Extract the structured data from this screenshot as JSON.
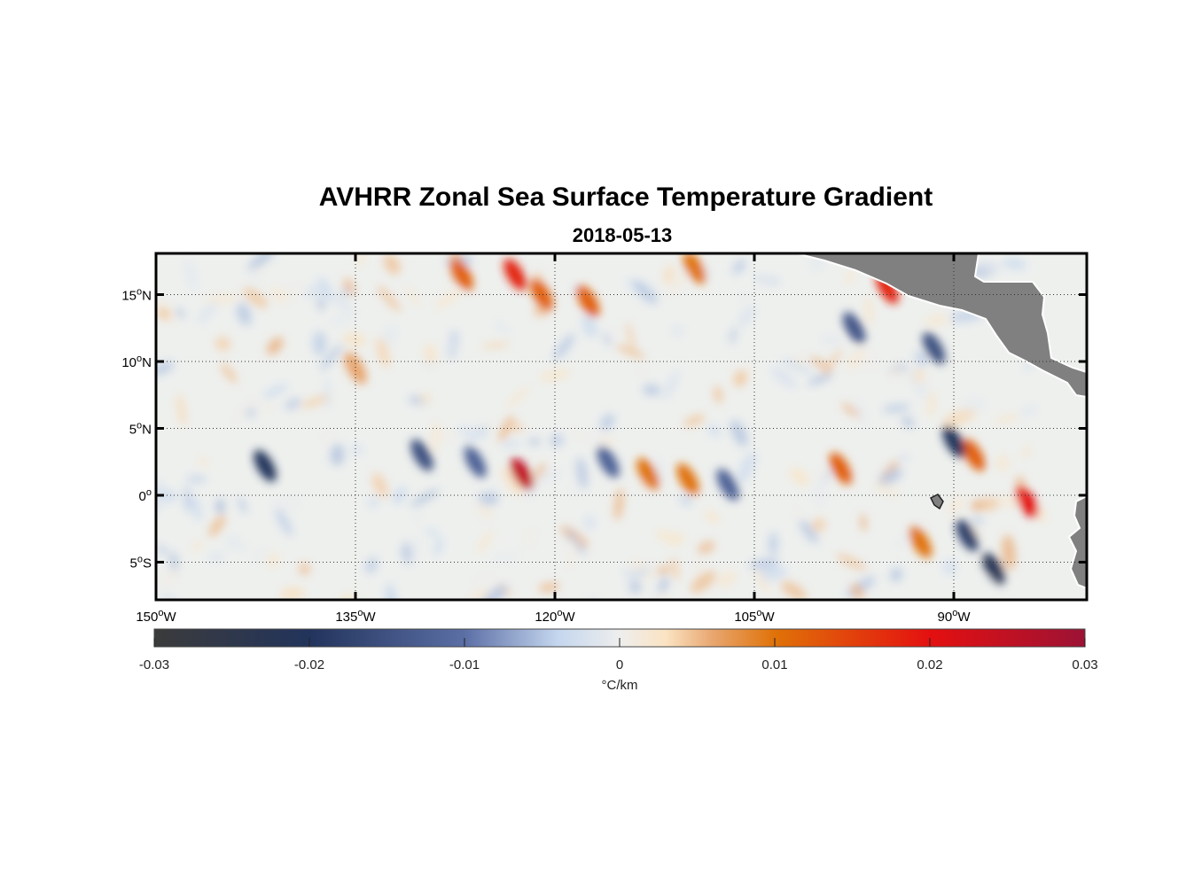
{
  "title": "AVHRR Zonal Sea Surface Temperature Gradient",
  "subtitle": "2018-05-13",
  "chart_data": {
    "type": "heatmap",
    "title": "AVHRR Zonal Sea Surface Temperature Gradient",
    "subtitle": "2018-05-13",
    "x_range_lon": [
      -150,
      -83
    ],
    "y_range_lat": [
      -8,
      18
    ],
    "x_ticks": [
      {
        "value": -150,
        "deg": "150",
        "suffix": "W"
      },
      {
        "value": -135,
        "deg": "135",
        "suffix": "W"
      },
      {
        "value": -120,
        "deg": "120",
        "suffix": "W"
      },
      {
        "value": -105,
        "deg": "105",
        "suffix": "W"
      },
      {
        "value": -90,
        "deg": "90",
        "suffix": "W"
      }
    ],
    "y_ticks": [
      {
        "value": 15,
        "deg": "15",
        "suffix": "N"
      },
      {
        "value": 10,
        "deg": "10",
        "suffix": "N"
      },
      {
        "value": 5,
        "deg": "5",
        "suffix": "N"
      },
      {
        "value": 0,
        "deg": "0",
        "suffix": ""
      },
      {
        "value": -5,
        "deg": "5",
        "suffix": "S"
      }
    ],
    "grid": true,
    "land_color": "#808080",
    "colorbar": {
      "range": [
        -0.03,
        0.03
      ],
      "ticks": [
        {
          "value": -0.03,
          "label": "-0.03"
        },
        {
          "value": -0.02,
          "label": "-0.02"
        },
        {
          "value": -0.01,
          "label": "-0.01"
        },
        {
          "value": 0,
          "label": "0"
        },
        {
          "value": 0.01,
          "label": "0.01"
        },
        {
          "value": 0.02,
          "label": "0.02"
        },
        {
          "value": 0.03,
          "label": "0.03"
        }
      ],
      "unit": "°C/km",
      "stops": [
        {
          "value": -0.03,
          "color": "#3b3b3b"
        },
        {
          "value": -0.02,
          "color": "#22345c"
        },
        {
          "value": -0.01,
          "color": "#5b6fa6"
        },
        {
          "value": -0.004,
          "color": "#c4d6ee"
        },
        {
          "value": 0,
          "color": "#eeeeee"
        },
        {
          "value": 0.003,
          "color": "#fbe3c2"
        },
        {
          "value": 0.006,
          "color": "#e8a66f"
        },
        {
          "value": 0.01,
          "color": "#e07208"
        },
        {
          "value": 0.02,
          "color": "#e41010"
        },
        {
          "value": 0.03,
          "color": "#9c1235"
        }
      ]
    },
    "features": [
      {
        "lon": -141.8,
        "lat": 2.2,
        "value": -0.02
      },
      {
        "lon": -130.0,
        "lat": 3.0,
        "value": -0.015
      },
      {
        "lon": -122.5,
        "lat": 1.6,
        "value": 0.025
      },
      {
        "lon": -126.0,
        "lat": 2.5,
        "value": -0.012
      },
      {
        "lon": -113.0,
        "lat": 1.6,
        "value": 0.01
      },
      {
        "lon": -110.0,
        "lat": 1.2,
        "value": 0.01
      },
      {
        "lon": -107.0,
        "lat": 0.8,
        "value": -0.012
      },
      {
        "lon": -116.0,
        "lat": 2.5,
        "value": -0.012
      },
      {
        "lon": -98.5,
        "lat": 2.0,
        "value": 0.012
      },
      {
        "lon": -88.5,
        "lat": 3.0,
        "value": 0.012
      },
      {
        "lon": -90.0,
        "lat": 4.0,
        "value": -0.02
      },
      {
        "lon": -84.5,
        "lat": -0.5,
        "value": 0.02
      },
      {
        "lon": -92.5,
        "lat": -3.5,
        "value": 0.01
      },
      {
        "lon": -87.0,
        "lat": -5.5,
        "value": -0.022
      },
      {
        "lon": -89.0,
        "lat": -3.0,
        "value": -0.018
      },
      {
        "lon": -123.0,
        "lat": 16.5,
        "value": 0.018
      },
      {
        "lon": -121.0,
        "lat": 15.0,
        "value": 0.012
      },
      {
        "lon": -117.5,
        "lat": 14.5,
        "value": 0.012
      },
      {
        "lon": -109.5,
        "lat": 17.0,
        "value": 0.01
      },
      {
        "lon": -95.0,
        "lat": 15.5,
        "value": 0.018
      },
      {
        "lon": -97.5,
        "lat": 12.5,
        "value": -0.014
      },
      {
        "lon": -91.5,
        "lat": 11.0,
        "value": -0.015
      },
      {
        "lon": -127.0,
        "lat": 16.5,
        "value": 0.012
      },
      {
        "lon": -135.0,
        "lat": 9.5,
        "value": 0.006
      }
    ]
  }
}
